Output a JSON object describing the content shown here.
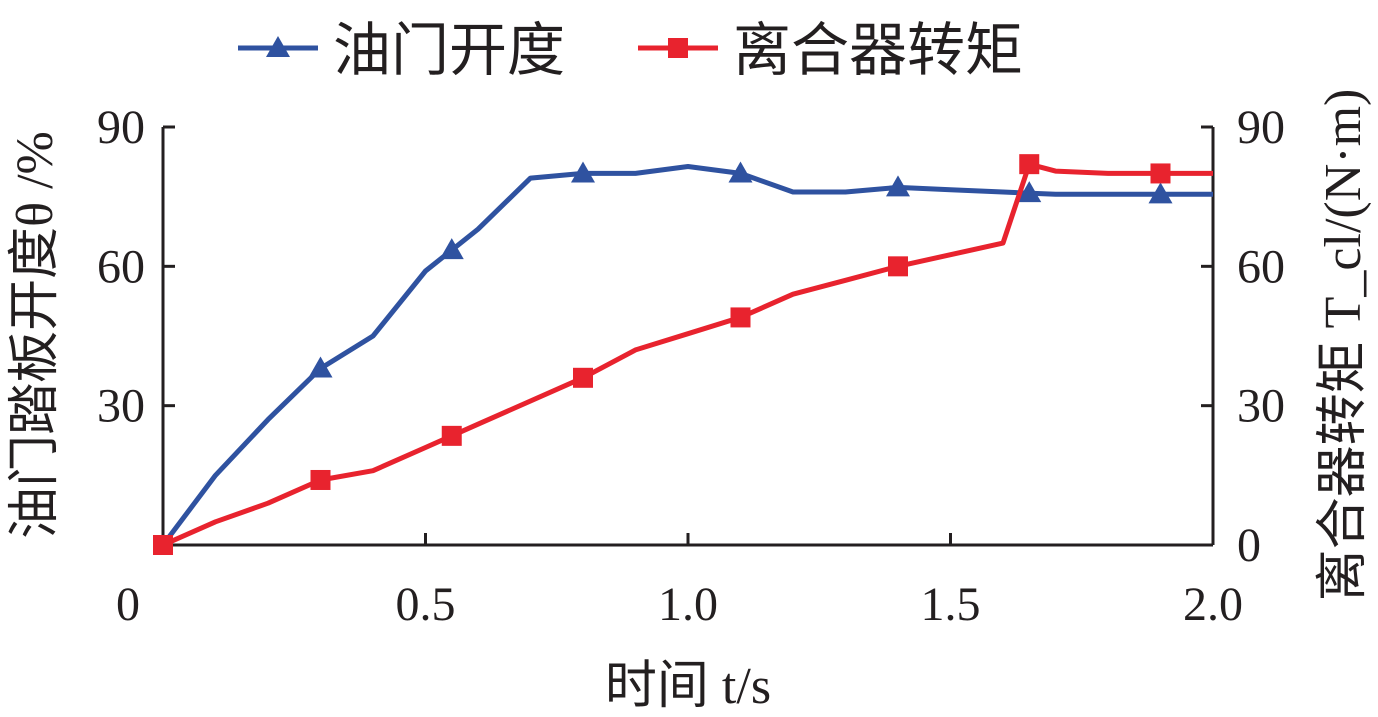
{
  "chart_data": {
    "type": "line",
    "title": "",
    "xlabel": "时间 t/s",
    "ylabel_left": "油门踏板开度θ /%",
    "ylabel_right": "离合器转矩 T_cl/(N·m)",
    "xlim": [
      0,
      2.0
    ],
    "ylim_left": [
      0,
      90
    ],
    "ylim_right": [
      0,
      90
    ],
    "x_ticks": [
      "0",
      "0.5",
      "1.0",
      "1.5",
      "2.0"
    ],
    "y_ticks_left": [
      "30",
      "60",
      "90"
    ],
    "y_ticks_right": [
      "0",
      "30",
      "60",
      "90"
    ],
    "grid": false,
    "legend_position": "top",
    "series": [
      {
        "name": "油门开度",
        "axis": "left",
        "color": "#2f52a0",
        "marker": "triangle",
        "x": [
          0,
          0.1,
          0.2,
          0.3,
          0.4,
          0.5,
          0.6,
          0.7,
          0.8,
          0.9,
          1.0,
          1.1,
          1.2,
          1.3,
          1.4,
          1.5,
          1.6,
          1.7,
          1.8,
          1.9,
          2.0
        ],
        "values": [
          0,
          15,
          27,
          38,
          45,
          59,
          68,
          79,
          80,
          80,
          81.5,
          80,
          76,
          76,
          77,
          76.5,
          76,
          75.5,
          75.5,
          75.5,
          75.5
        ],
        "marker_x": [
          0.3,
          0.55,
          0.8,
          1.1,
          1.4,
          1.65,
          1.9
        ]
      },
      {
        "name": "离合器转矩",
        "axis": "right",
        "color": "#e8232e",
        "marker": "square",
        "x": [
          0,
          0.1,
          0.2,
          0.3,
          0.4,
          0.5,
          0.6,
          0.7,
          0.8,
          0.9,
          1.0,
          1.1,
          1.2,
          1.3,
          1.4,
          1.5,
          1.6,
          1.65,
          1.7,
          1.8,
          1.9,
          2.0
        ],
        "values": [
          0,
          5,
          9,
          14,
          16,
          21,
          26,
          31,
          36,
          42,
          45.5,
          49,
          54,
          57,
          60,
          62.5,
          65,
          82,
          80.5,
          80,
          80,
          80
        ],
        "marker_x": [
          0,
          0.3,
          0.55,
          0.8,
          1.1,
          1.4,
          1.65,
          1.9
        ]
      }
    ]
  }
}
